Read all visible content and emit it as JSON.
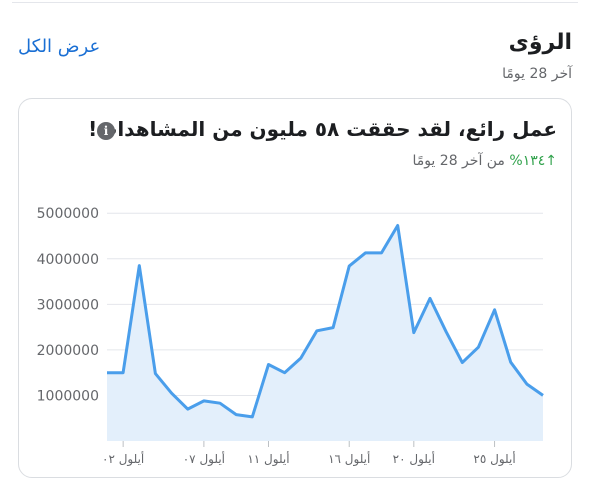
{
  "header": {
    "title": "الرؤى",
    "subtitle": "آخر 28 يومًا",
    "see_all": "عرض الكل"
  },
  "card": {
    "headline": "عمل رائع، لقد حققت ٥٨ مليون من المشاهدات!",
    "info_icon": "info-icon",
    "trend_value": "↑١٣٤%",
    "trend_label": "من آخر 28 يومًا"
  },
  "colors": {
    "accent": "#1a6fd4",
    "line": "#4a9eeb",
    "area": "#e3effb",
    "positive": "#31a24c"
  },
  "chart_data": {
    "type": "area",
    "y_ticks": [
      "5000000",
      "4000000",
      "3000000",
      "2000000",
      "1000000"
    ],
    "y_tick_values": [
      5000000,
      4000000,
      3000000,
      2000000,
      1000000
    ],
    "x_ticks": [
      "أيلول ٠٢",
      "أيلول ٠٧",
      "أيلول ١١",
      "أيلول ١٦",
      "أيلول ٢٠",
      "أيلول ٢٥"
    ],
    "x_tick_index": [
      1,
      6,
      10,
      15,
      19,
      24
    ],
    "values": [
      1500000,
      1500000,
      3850000,
      1480000,
      1050000,
      700000,
      880000,
      830000,
      580000,
      530000,
      1680000,
      1500000,
      1820000,
      2420000,
      2490000,
      3840000,
      4130000,
      4130000,
      4730000,
      2380000,
      3130000,
      2400000,
      1720000,
      2060000,
      2880000,
      1730000,
      1250000,
      1000000
    ],
    "ylim": [
      0,
      5400000
    ],
    "grid": true
  }
}
